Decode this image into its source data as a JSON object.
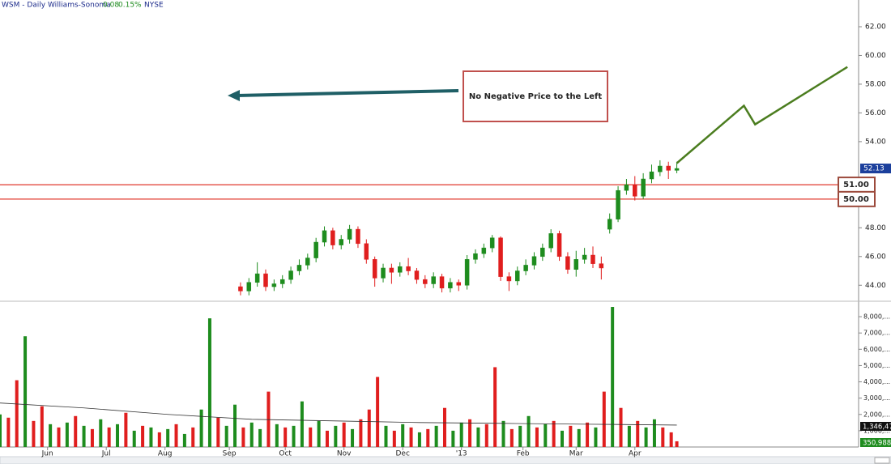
{
  "header": {
    "symbol": "WSM - Daily Williams-Sonoma",
    "change": "0.08",
    "change_pct": "0.15%",
    "exchange": "NYSE"
  },
  "annotation": "No Negative Price to the Left",
  "chart_data": [
    {
      "type": "candlestick",
      "xlim": [
        0,
        307
      ],
      "ylim": [
        43,
        63.86
      ],
      "yticks": [
        {
          "value": 44,
          "label": "44.00"
        },
        {
          "value": 46,
          "label": "46.00"
        },
        {
          "value": 48,
          "label": "48.00"
        },
        {
          "value": 54,
          "label": "54.00"
        },
        {
          "value": 56,
          "label": "56.00"
        },
        {
          "value": 58,
          "label": "58.00"
        },
        {
          "value": 60,
          "label": "60.00"
        },
        {
          "value": 62,
          "label": "62.00"
        }
      ],
      "up_color": "#1e8c1e",
      "down_color": "#e01e1e",
      "x": [
        86,
        89,
        92,
        95,
        98,
        101,
        104,
        107,
        110,
        113,
        116,
        119,
        122,
        125,
        128,
        131,
        134,
        137,
        140,
        143,
        146,
        149,
        152,
        155,
        158,
        161,
        164,
        167,
        170,
        173,
        176,
        179,
        182,
        185,
        188,
        191,
        194,
        197,
        200,
        203,
        206,
        209,
        212,
        215,
        218,
        221,
        224,
        227,
        230,
        233,
        236,
        239,
        242
      ],
      "open": [
        43.9,
        43.6,
        44.2,
        44.8,
        43.9,
        44.1,
        44.4,
        45.0,
        45.4,
        45.9,
        47.0,
        47.8,
        46.8,
        47.2,
        47.9,
        46.9,
        45.8,
        44.5,
        45.2,
        44.9,
        45.3,
        45.0,
        44.4,
        44.1,
        44.6,
        43.8,
        44.2,
        44.0,
        45.8,
        46.2,
        46.6,
        47.3,
        44.6,
        44.3,
        45.0,
        45.4,
        46.0,
        46.6,
        47.6,
        46.0,
        45.1,
        45.8,
        46.1,
        45.5,
        47.9,
        48.6,
        50.6,
        51.0,
        50.2,
        51.4,
        51.9,
        52.3,
        52.0
      ],
      "high": [
        44.2,
        44.5,
        45.6,
        45.1,
        44.4,
        44.7,
        45.3,
        45.8,
        46.2,
        47.3,
        48.1,
        48.0,
        47.5,
        48.2,
        48.1,
        47.2,
        46.0,
        45.5,
        45.5,
        45.6,
        45.9,
        45.2,
        44.7,
        44.9,
        44.8,
        44.5,
        44.4,
        46.1,
        46.5,
        46.9,
        47.5,
        47.4,
        44.9,
        45.3,
        45.8,
        46.3,
        46.9,
        47.9,
        47.8,
        46.3,
        46.4,
        46.6,
        46.7,
        46.0,
        49.0,
        50.9,
        51.4,
        51.6,
        51.8,
        52.4,
        52.7,
        52.6,
        52.6
      ],
      "low": [
        43.3,
        43.3,
        43.9,
        43.6,
        43.6,
        43.8,
        44.1,
        44.7,
        45.1,
        45.6,
        46.7,
        46.5,
        46.5,
        46.9,
        46.6,
        45.5,
        43.9,
        44.2,
        44.1,
        44.6,
        44.7,
        44.1,
        43.8,
        43.8,
        43.5,
        43.5,
        43.6,
        43.7,
        45.5,
        45.9,
        46.3,
        44.3,
        43.6,
        44.0,
        44.7,
        45.1,
        45.7,
        46.3,
        45.7,
        44.8,
        44.6,
        45.5,
        45.2,
        44.4,
        47.6,
        48.4,
        50.3,
        49.9,
        50.0,
        51.1,
        51.6,
        51.4,
        51.8
      ],
      "close": [
        43.6,
        44.2,
        44.8,
        43.9,
        44.1,
        44.4,
        45.0,
        45.4,
        45.9,
        47.0,
        47.8,
        46.8,
        47.2,
        47.9,
        46.9,
        45.8,
        44.5,
        45.2,
        44.9,
        45.3,
        45.0,
        44.4,
        44.1,
        44.6,
        43.8,
        44.2,
        44.0,
        45.8,
        46.2,
        46.6,
        47.3,
        44.6,
        44.3,
        45.0,
        45.4,
        46.0,
        46.6,
        47.6,
        46.0,
        45.1,
        45.8,
        46.1,
        45.5,
        45.2,
        48.6,
        50.6,
        51.0,
        50.2,
        51.4,
        51.9,
        52.3,
        52.0,
        52.13
      ],
      "last_price": 52.13,
      "hlines": [
        {
          "value": 51,
          "label": "51.00"
        },
        {
          "value": 50,
          "label": "50.00"
        }
      ],
      "hline_color": "#e03a2e",
      "projection": {
        "x": [
          242,
          266,
          270,
          303
        ],
        "values": [
          52.5,
          56.5,
          55.2,
          59.2
        ],
        "color": "#4b7d1f"
      }
    },
    {
      "type": "bar",
      "xlim": [
        0,
        307
      ],
      "ylim": [
        0,
        8800000
      ],
      "yticks": [
        {
          "value": 1000000,
          "label": "1,000,..."
        },
        {
          "value": 2000000,
          "label": "2,000,..."
        },
        {
          "value": 3000000,
          "label": "3,000,..."
        },
        {
          "value": 4000000,
          "label": "4,000,..."
        },
        {
          "value": 5000000,
          "label": "5,000,..."
        },
        {
          "value": 6000000,
          "label": "6,000,..."
        },
        {
          "value": 7000000,
          "label": "7,000,..."
        },
        {
          "value": 8000000,
          "label": "8,000,..."
        }
      ],
      "xticks": [
        {
          "value": 17,
          "label": "Jun"
        },
        {
          "value": 38,
          "label": "Jul"
        },
        {
          "value": 59,
          "label": "Aug"
        },
        {
          "value": 82,
          "label": "Sep"
        },
        {
          "value": 102,
          "label": "Oct"
        },
        {
          "value": 123,
          "label": "Nov"
        },
        {
          "value": 144,
          "label": "Dec"
        },
        {
          "value": 165,
          "label": "'13"
        },
        {
          "value": 187,
          "label": "Feb"
        },
        {
          "value": 206,
          "label": "Mar"
        },
        {
          "value": 227,
          "label": "Apr"
        }
      ],
      "x": [
        0,
        3,
        6,
        9,
        12,
        15,
        18,
        21,
        24,
        27,
        30,
        33,
        36,
        39,
        42,
        45,
        48,
        51,
        54,
        57,
        60,
        63,
        66,
        69,
        72,
        75,
        78,
        81,
        84,
        87,
        90,
        93,
        96,
        99,
        102,
        105,
        108,
        111,
        114,
        117,
        120,
        123,
        126,
        129,
        132,
        135,
        138,
        141,
        144,
        147,
        150,
        153,
        156,
        159,
        162,
        165,
        168,
        171,
        174,
        177,
        180,
        183,
        186,
        189,
        192,
        195,
        198,
        201,
        204,
        207,
        210,
        213,
        216,
        219,
        222,
        225,
        228,
        231,
        234,
        237,
        240,
        242
      ],
      "values": [
        2000000,
        1800000,
        4100000,
        6800000,
        1600000,
        2500000,
        1400000,
        1200000,
        1500000,
        1900000,
        1300000,
        1100000,
        1700000,
        1200000,
        1400000,
        2100000,
        1000000,
        1300000,
        1200000,
        900000,
        1100000,
        1400000,
        800000,
        1200000,
        2300000,
        7900000,
        1800000,
        1300000,
        2600000,
        1200000,
        1500000,
        1100000,
        3400000,
        1400000,
        1200000,
        1300000,
        2800000,
        1200000,
        1600000,
        1000000,
        1300000,
        1500000,
        1100000,
        1700000,
        2300000,
        4300000,
        1300000,
        1000000,
        1400000,
        1200000,
        900000,
        1100000,
        1300000,
        2400000,
        1000000,
        1500000,
        1700000,
        1200000,
        1400000,
        4900000,
        1600000,
        1100000,
        1300000,
        1900000,
        1200000,
        1400000,
        1600000,
        1000000,
        1300000,
        1100000,
        1500000,
        1200000,
        3400000,
        8600000,
        2400000,
        1300000,
        1600000,
        1200000,
        1700000,
        1200000,
        900000,
        350988
      ],
      "value_labels": {
        "81": "350,988"
      },
      "colors": [
        "#1e8c1e",
        "#e01e1e",
        "#e01e1e",
        "#1e8c1e",
        "#e01e1e",
        "#e01e1e",
        "#1e8c1e",
        "#e01e1e",
        "#1e8c1e",
        "#e01e1e",
        "#1e8c1e",
        "#e01e1e",
        "#1e8c1e",
        "#e01e1e",
        "#1e8c1e",
        "#e01e1e",
        "#1e8c1e",
        "#e01e1e",
        "#1e8c1e",
        "#e01e1e",
        "#1e8c1e",
        "#e01e1e",
        "#1e8c1e",
        "#e01e1e",
        "#1e8c1e",
        "#1e8c1e",
        "#e01e1e",
        "#1e8c1e",
        "#1e8c1e",
        "#e01e1e",
        "#1e8c1e",
        "#1e8c1e",
        "#e01e1e",
        "#1e8c1e",
        "#e01e1e",
        "#1e8c1e",
        "#1e8c1e",
        "#e01e1e",
        "#1e8c1e",
        "#e01e1e",
        "#1e8c1e",
        "#e01e1e",
        "#1e8c1e",
        "#e01e1e",
        "#e01e1e",
        "#e01e1e",
        "#1e8c1e",
        "#e01e1e",
        "#1e8c1e",
        "#e01e1e",
        "#1e8c1e",
        "#e01e1e",
        "#1e8c1e",
        "#e01e1e",
        "#1e8c1e",
        "#1e8c1e",
        "#e01e1e",
        "#1e8c1e",
        "#e01e1e",
        "#e01e1e",
        "#1e8c1e",
        "#e01e1e",
        "#1e8c1e",
        "#1e8c1e",
        "#e01e1e",
        "#1e8c1e",
        "#e01e1e",
        "#1e8c1e",
        "#e01e1e",
        "#1e8c1e",
        "#e01e1e",
        "#1e8c1e",
        "#e01e1e",
        "#1e8c1e",
        "#e01e1e",
        "#1e8c1e",
        "#e01e1e",
        "#1e8c1e",
        "#1e8c1e",
        "#e01e1e",
        "#e01e1e",
        "#e01e1e"
      ],
      "moving_average": {
        "x": [
          0,
          30,
          60,
          90,
          120,
          150,
          180,
          210,
          242
        ],
        "values": [
          2700000,
          2400000,
          2000000,
          1700000,
          1600000,
          1500000,
          1450000,
          1400000,
          1346470
        ],
        "last_label": "1,346,47",
        "color": "#333333"
      }
    }
  ]
}
